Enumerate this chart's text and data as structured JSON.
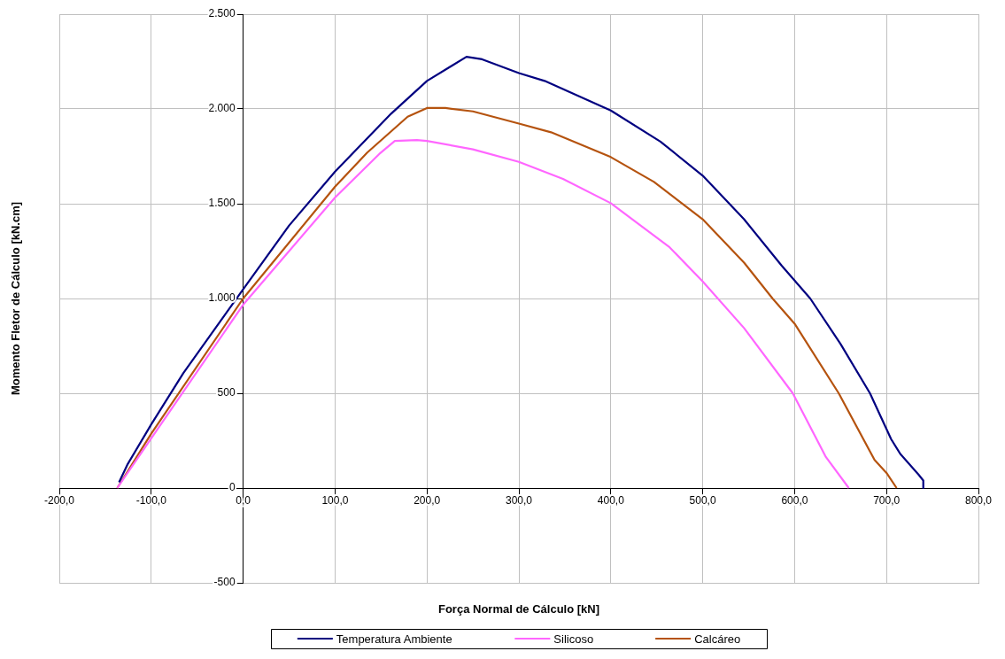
{
  "chart_data": {
    "type": "line",
    "xlabel": "Força Normal de Cálculo [kN]",
    "ylabel": "Momento Fletor de Cálculo [kN.cm]",
    "xlim": [
      -200,
      800
    ],
    "xticks": [
      {
        "value": -200,
        "label": "-200,0"
      },
      {
        "value": -100,
        "label": "-100,0"
      },
      {
        "value": 0,
        "label": "0,0"
      },
      {
        "value": 100,
        "label": "100,0"
      },
      {
        "value": 200,
        "label": "200,0"
      },
      {
        "value": 300,
        "label": "300,0"
      },
      {
        "value": 400,
        "label": "400,0"
      },
      {
        "value": 500,
        "label": "500,0"
      },
      {
        "value": 600,
        "label": "600,0"
      },
      {
        "value": 700,
        "label": "700,0"
      },
      {
        "value": 800,
        "label": "800,0"
      }
    ],
    "ylim": [
      -500,
      2500
    ],
    "yticks": [
      -500,
      0,
      500,
      {
        "value": 1000,
        "label": "1.000"
      },
      {
        "value": 1500,
        "label": "1.500"
      },
      {
        "value": 2000,
        "label": "2.000"
      },
      {
        "value": 2500,
        "label": "2.500"
      }
    ],
    "grid": true,
    "legend": "bottom",
    "marker": "none",
    "line_style": "solid",
    "series": [
      {
        "name": "Temperatura Ambiente",
        "color": "#000080",
        "x": [
          -135,
          -126,
          -100,
          -65,
          0,
          50,
          100,
          161,
          200,
          243,
          260,
          300,
          328,
          400,
          454,
          500,
          545,
          586,
          617,
          650,
          682,
          705,
          715,
          735,
          740,
          740
        ],
        "values": [
          30,
          123,
          336,
          607,
          1049,
          1385,
          1669,
          1975,
          2148,
          2275,
          2262,
          2189,
          2148,
          1992,
          1828,
          1648,
          1418,
          1173,
          1000,
          760,
          500,
          258,
          180,
          70,
          40,
          0
        ]
      },
      {
        "name": "Silicoso",
        "color": "#ff66ff",
        "x": [
          -137,
          -100,
          0,
          100,
          148,
          165,
          189,
          200,
          250,
          300,
          348,
          400,
          464,
          500,
          545,
          598,
          634,
          659
        ],
        "values": [
          0,
          262,
          967,
          1533,
          1762,
          1831,
          1836,
          1831,
          1787,
          1721,
          1631,
          1503,
          1270,
          1090,
          844,
          500,
          164,
          0
        ]
      },
      {
        "name": "Calcáreo",
        "color": "#b5530f",
        "x": [
          -137,
          -100,
          0,
          100,
          135,
          179,
          200,
          220,
          250,
          300,
          335,
          400,
          447,
          500,
          545,
          576,
          600,
          648,
          687,
          700,
          711
        ],
        "values": [
          0,
          287,
          1000,
          1590,
          1770,
          1959,
          2005,
          2005,
          1987,
          1923,
          1877,
          1746,
          1615,
          1418,
          1189,
          1000,
          867,
          500,
          148,
          80,
          0
        ]
      }
    ]
  }
}
